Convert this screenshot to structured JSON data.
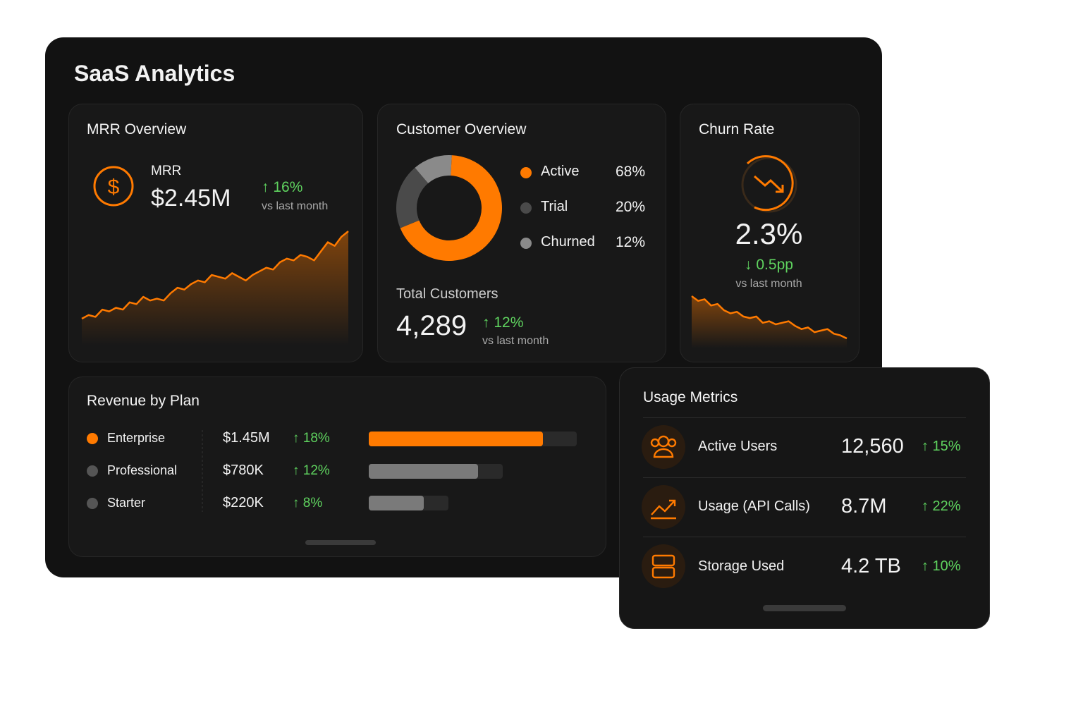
{
  "title": "SaaS Analytics",
  "mrr": {
    "title": "MRR Overview",
    "label": "MRR",
    "value": "$2.45M",
    "change": "↑ 16%",
    "change_note": "vs last month",
    "trend": [
      10,
      12,
      11,
      15,
      14,
      16,
      15,
      19,
      18,
      22,
      20,
      21,
      20,
      24,
      27,
      26,
      29,
      31,
      30,
      34,
      33,
      32,
      35,
      33,
      31,
      34,
      36,
      38,
      37,
      41,
      43,
      42,
      45,
      44,
      42,
      47,
      52,
      50,
      55,
      58
    ]
  },
  "customer": {
    "title": "Customer Overview",
    "segments": [
      {
        "label": "Active",
        "value": 68,
        "value_label": "68%",
        "color": "#ff7a00"
      },
      {
        "label": "Trial",
        "value": 20,
        "value_label": "20%",
        "color": "#4a4a4a"
      },
      {
        "label": "Churned",
        "value": 12,
        "value_label": "12%",
        "color": "#8a8a8a"
      }
    ],
    "total_label": "Total Customers",
    "total": "4,289",
    "change": "↑ 12%",
    "change_note": "vs last month"
  },
  "churn": {
    "title": "Churn Rate",
    "value": "2.3%",
    "change": "↓ 0.5pp",
    "change_note": "vs last month",
    "trend": [
      30,
      27,
      28,
      24,
      25,
      21,
      19,
      20,
      17,
      16,
      17,
      13,
      14,
      12,
      13,
      14,
      11,
      9,
      10,
      7,
      8,
      9,
      6,
      5,
      3
    ]
  },
  "revenue": {
    "title": "Revenue by Plan",
    "plans": [
      {
        "name": "Enterprise",
        "amount": "$1.45M",
        "change": "↑ 18%",
        "color": "#ff7a00"
      },
      {
        "name": "Professional",
        "amount": "$780K",
        "change": "↑ 12%",
        "color": "#555555"
      },
      {
        "name": "Starter",
        "amount": "$220K",
        "change": "↑ 8%",
        "color": "#555555"
      }
    ]
  },
  "usage": {
    "title": "Usage Metrics",
    "rows": [
      {
        "label": "Active Users",
        "value": "12,560",
        "change": "↑ 15%"
      },
      {
        "label": "Usage (API Calls)",
        "value": "8.7M",
        "change": "↑ 22%"
      },
      {
        "label": "Storage Used",
        "value": "4.2 TB",
        "change": "↑ 10%"
      }
    ]
  }
}
